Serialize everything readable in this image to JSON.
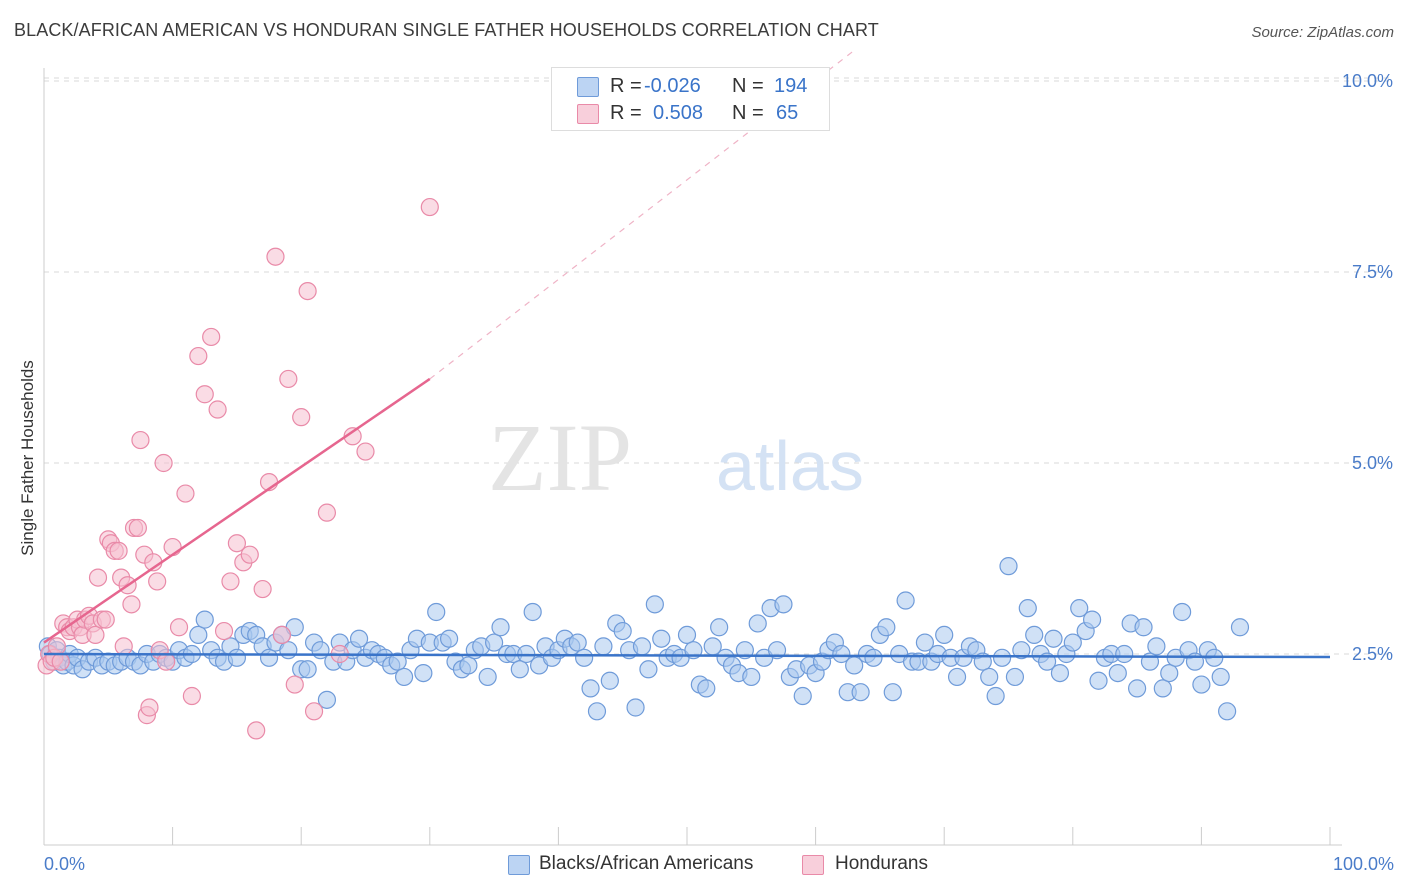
{
  "title": "BLACK/AFRICAN AMERICAN VS HONDURAN SINGLE FATHER HOUSEHOLDS CORRELATION CHART",
  "source": "Source: ZipAtlas.com",
  "watermark": {
    "zip": "ZIP",
    "atlas": "atlas"
  },
  "legend_top": [
    {
      "r_label": "R =",
      "r_value": "-0.026",
      "n_label": "N =",
      "n_value": "194"
    },
    {
      "r_label": "R =",
      "r_value": "0.508",
      "n_label": "N =",
      "n_value": "65"
    }
  ],
  "legend_bottom": [
    "Blacks/African Americans",
    "Hondurans"
  ],
  "chart_data": {
    "type": "scatter",
    "title": "BLACK/AFRICAN AMERICAN VS HONDURAN SINGLE FATHER HOUSEHOLDS CORRELATION CHART",
    "xlabel": "",
    "ylabel": "Single Father Households",
    "xlim": [
      0,
      100
    ],
    "ylim": [
      0,
      10.5
    ],
    "x_tick_labels": [
      "0.0%",
      "100.0%"
    ],
    "y_ticks": [
      2.5,
      5.0,
      7.5,
      10.0
    ],
    "y_tick_labels": [
      "2.5%",
      "5.0%",
      "7.5%",
      "10.0%"
    ],
    "colors": {
      "blue_fill": "#aac8ef",
      "blue_stroke": "#6f9bd9",
      "blue_line": "#3a74c9",
      "pink_fill": "#f6bfd0",
      "pink_stroke": "#e98aa8",
      "pink_line": "#e6668f",
      "accent_text": "#3a74c9",
      "grid": "#d8d8d8"
    },
    "series": [
      {
        "name": "Blacks/African Americans",
        "r": -0.026,
        "n": 194,
        "trend": {
          "x0": 0,
          "y0": 2.5,
          "x1": 100,
          "y1": 2.46
        },
        "points": [
          [
            0.3,
            2.6
          ],
          [
            0.5,
            2.5
          ],
          [
            0.8,
            2.4
          ],
          [
            1.0,
            2.55
          ],
          [
            1.2,
            2.45
          ],
          [
            1.5,
            2.35
          ],
          [
            1.8,
            2.4
          ],
          [
            2.0,
            2.5
          ],
          [
            2.3,
            2.35
          ],
          [
            2.6,
            2.45
          ],
          [
            3.0,
            2.3
          ],
          [
            3.5,
            2.4
          ],
          [
            4.0,
            2.45
          ],
          [
            4.5,
            2.35
          ],
          [
            5.0,
            2.4
          ],
          [
            5.5,
            2.35
          ],
          [
            6.0,
            2.4
          ],
          [
            6.5,
            2.45
          ],
          [
            7.0,
            2.4
          ],
          [
            7.5,
            2.35
          ],
          [
            8.0,
            2.5
          ],
          [
            8.5,
            2.4
          ],
          [
            9.0,
            2.5
          ],
          [
            9.5,
            2.45
          ],
          [
            10.0,
            2.4
          ],
          [
            10.5,
            2.55
          ],
          [
            11.0,
            2.45
          ],
          [
            11.5,
            2.5
          ],
          [
            12.0,
            2.75
          ],
          [
            12.5,
            2.95
          ],
          [
            13.0,
            2.55
          ],
          [
            13.5,
            2.45
          ],
          [
            14.0,
            2.4
          ],
          [
            14.5,
            2.6
          ],
          [
            15.0,
            2.45
          ],
          [
            15.5,
            2.75
          ],
          [
            16.0,
            2.8
          ],
          [
            16.5,
            2.75
          ],
          [
            17.0,
            2.6
          ],
          [
            17.5,
            2.45
          ],
          [
            18.0,
            2.65
          ],
          [
            18.5,
            2.75
          ],
          [
            19.0,
            2.55
          ],
          [
            19.5,
            2.85
          ],
          [
            20.0,
            2.3
          ],
          [
            20.5,
            2.3
          ],
          [
            21.0,
            2.65
          ],
          [
            21.5,
            2.55
          ],
          [
            22.0,
            1.9
          ],
          [
            22.5,
            2.4
          ],
          [
            23.0,
            2.65
          ],
          [
            23.5,
            2.4
          ],
          [
            24.0,
            2.55
          ],
          [
            24.5,
            2.7
          ],
          [
            25.0,
            2.45
          ],
          [
            25.5,
            2.55
          ],
          [
            26.0,
            2.5
          ],
          [
            26.5,
            2.45
          ],
          [
            27.0,
            2.35
          ],
          [
            27.5,
            2.4
          ],
          [
            28.0,
            2.2
          ],
          [
            28.5,
            2.55
          ],
          [
            29.0,
            2.7
          ],
          [
            29.5,
            2.25
          ],
          [
            30.0,
            2.65
          ],
          [
            30.5,
            3.05
          ],
          [
            31.0,
            2.65
          ],
          [
            31.5,
            2.7
          ],
          [
            32.0,
            2.4
          ],
          [
            32.5,
            2.3
          ],
          [
            33.0,
            2.35
          ],
          [
            33.5,
            2.55
          ],
          [
            34.0,
            2.6
          ],
          [
            34.5,
            2.2
          ],
          [
            35.0,
            2.65
          ],
          [
            35.5,
            2.85
          ],
          [
            36.0,
            2.5
          ],
          [
            36.5,
            2.5
          ],
          [
            37.0,
            2.3
          ],
          [
            37.5,
            2.5
          ],
          [
            38.0,
            3.05
          ],
          [
            38.5,
            2.35
          ],
          [
            39.0,
            2.6
          ],
          [
            39.5,
            2.45
          ],
          [
            40.0,
            2.55
          ],
          [
            40.5,
            2.7
          ],
          [
            41.0,
            2.6
          ],
          [
            41.5,
            2.65
          ],
          [
            42.0,
            2.45
          ],
          [
            42.5,
            2.05
          ],
          [
            43.0,
            1.75
          ],
          [
            43.5,
            2.6
          ],
          [
            44.0,
            2.15
          ],
          [
            44.5,
            2.9
          ],
          [
            45.0,
            2.8
          ],
          [
            45.5,
            2.55
          ],
          [
            46.0,
            1.8
          ],
          [
            46.5,
            2.6
          ],
          [
            47.0,
            2.3
          ],
          [
            47.5,
            3.15
          ],
          [
            48.0,
            2.7
          ],
          [
            48.5,
            2.45
          ],
          [
            49.0,
            2.5
          ],
          [
            49.5,
            2.45
          ],
          [
            50.0,
            2.75
          ],
          [
            50.5,
            2.55
          ],
          [
            51.0,
            2.1
          ],
          [
            51.5,
            2.05
          ],
          [
            52.0,
            2.6
          ],
          [
            52.5,
            2.85
          ],
          [
            53.0,
            2.45
          ],
          [
            53.5,
            2.35
          ],
          [
            54.0,
            2.25
          ],
          [
            54.5,
            2.55
          ],
          [
            55.0,
            2.2
          ],
          [
            55.5,
            2.9
          ],
          [
            56.0,
            2.45
          ],
          [
            56.5,
            3.1
          ],
          [
            57.0,
            2.55
          ],
          [
            57.5,
            3.15
          ],
          [
            58.0,
            2.2
          ],
          [
            58.5,
            2.3
          ],
          [
            59.0,
            1.95
          ],
          [
            59.5,
            2.35
          ],
          [
            60.0,
            2.25
          ],
          [
            60.5,
            2.4
          ],
          [
            61.0,
            2.55
          ],
          [
            61.5,
            2.65
          ],
          [
            62.0,
            2.5
          ],
          [
            62.5,
            2.0
          ],
          [
            63.0,
            2.35
          ],
          [
            63.5,
            2.0
          ],
          [
            64.0,
            2.5
          ],
          [
            64.5,
            2.45
          ],
          [
            65.0,
            2.75
          ],
          [
            65.5,
            2.85
          ],
          [
            66.0,
            2.0
          ],
          [
            66.5,
            2.5
          ],
          [
            67.0,
            3.2
          ],
          [
            67.5,
            2.4
          ],
          [
            68.0,
            2.4
          ],
          [
            68.5,
            2.65
          ],
          [
            69.0,
            2.4
          ],
          [
            69.5,
            2.5
          ],
          [
            70.0,
            2.75
          ],
          [
            70.5,
            2.45
          ],
          [
            71.0,
            2.2
          ],
          [
            71.5,
            2.45
          ],
          [
            72.0,
            2.6
          ],
          [
            72.5,
            2.55
          ],
          [
            73.0,
            2.4
          ],
          [
            73.5,
            2.2
          ],
          [
            74.0,
            1.95
          ],
          [
            74.5,
            2.45
          ],
          [
            75.0,
            3.65
          ],
          [
            75.5,
            2.2
          ],
          [
            76.0,
            2.55
          ],
          [
            76.5,
            3.1
          ],
          [
            77.0,
            2.75
          ],
          [
            77.5,
            2.5
          ],
          [
            78.0,
            2.4
          ],
          [
            78.5,
            2.7
          ],
          [
            79.0,
            2.25
          ],
          [
            79.5,
            2.5
          ],
          [
            80.0,
            2.65
          ],
          [
            80.5,
            3.1
          ],
          [
            81.0,
            2.8
          ],
          [
            81.5,
            2.95
          ],
          [
            82.0,
            2.15
          ],
          [
            82.5,
            2.45
          ],
          [
            83.0,
            2.5
          ],
          [
            83.5,
            2.25
          ],
          [
            84.0,
            2.5
          ],
          [
            84.5,
            2.9
          ],
          [
            85.0,
            2.05
          ],
          [
            85.5,
            2.85
          ],
          [
            86.0,
            2.4
          ],
          [
            86.5,
            2.6
          ],
          [
            87.0,
            2.05
          ],
          [
            87.5,
            2.25
          ],
          [
            88.0,
            2.45
          ],
          [
            88.5,
            3.05
          ],
          [
            89.0,
            2.55
          ],
          [
            89.5,
            2.4
          ],
          [
            90.0,
            2.1
          ],
          [
            90.5,
            2.55
          ],
          [
            91.0,
            2.45
          ],
          [
            91.5,
            2.2
          ],
          [
            92.0,
            1.75
          ],
          [
            93.0,
            2.85
          ]
        ]
      },
      {
        "name": "Hondurans",
        "r": 0.508,
        "n": 65,
        "trend": {
          "x0": 0,
          "y0": 2.65,
          "x1": 30,
          "y1": 6.1,
          "dash_to_x": 63,
          "dash_to_y": 10.4
        },
        "points": [
          [
            0.2,
            2.35
          ],
          [
            0.4,
            2.5
          ],
          [
            0.6,
            2.4
          ],
          [
            0.8,
            2.45
          ],
          [
            1.0,
            2.6
          ],
          [
            1.3,
            2.4
          ],
          [
            1.5,
            2.9
          ],
          [
            1.8,
            2.85
          ],
          [
            2.0,
            2.8
          ],
          [
            2.3,
            2.85
          ],
          [
            2.6,
            2.95
          ],
          [
            2.8,
            2.85
          ],
          [
            3.0,
            2.75
          ],
          [
            3.2,
            2.95
          ],
          [
            3.5,
            3.0
          ],
          [
            3.8,
            2.9
          ],
          [
            4.0,
            2.75
          ],
          [
            4.2,
            3.5
          ],
          [
            4.5,
            2.95
          ],
          [
            4.8,
            2.95
          ],
          [
            5.0,
            4.0
          ],
          [
            5.2,
            3.95
          ],
          [
            5.5,
            3.85
          ],
          [
            5.8,
            3.85
          ],
          [
            6.0,
            3.5
          ],
          [
            6.2,
            2.6
          ],
          [
            6.5,
            3.4
          ],
          [
            6.8,
            3.15
          ],
          [
            7.0,
            4.15
          ],
          [
            7.3,
            4.15
          ],
          [
            7.5,
            5.3
          ],
          [
            7.8,
            3.8
          ],
          [
            8.0,
            1.7
          ],
          [
            8.2,
            1.8
          ],
          [
            8.5,
            3.7
          ],
          [
            8.8,
            3.45
          ],
          [
            9.0,
            2.55
          ],
          [
            9.3,
            5.0
          ],
          [
            9.5,
            2.4
          ],
          [
            10.0,
            3.9
          ],
          [
            10.5,
            2.85
          ],
          [
            11.0,
            4.6
          ],
          [
            11.5,
            1.95
          ],
          [
            12.0,
            6.4
          ],
          [
            12.5,
            5.9
          ],
          [
            13.0,
            6.65
          ],
          [
            13.5,
            5.7
          ],
          [
            14.0,
            2.8
          ],
          [
            14.5,
            3.45
          ],
          [
            15.0,
            3.95
          ],
          [
            15.5,
            3.7
          ],
          [
            16.0,
            3.8
          ],
          [
            16.5,
            1.5
          ],
          [
            17.0,
            3.35
          ],
          [
            17.5,
            4.75
          ],
          [
            18.0,
            7.7
          ],
          [
            18.5,
            2.75
          ],
          [
            19.0,
            6.1
          ],
          [
            19.5,
            2.1
          ],
          [
            20.0,
            5.6
          ],
          [
            20.5,
            7.25
          ],
          [
            21.0,
            1.75
          ],
          [
            22.0,
            4.35
          ],
          [
            23.0,
            2.5
          ],
          [
            24.0,
            5.35
          ],
          [
            25.0,
            5.15
          ],
          [
            30.0,
            8.35
          ]
        ]
      }
    ]
  }
}
